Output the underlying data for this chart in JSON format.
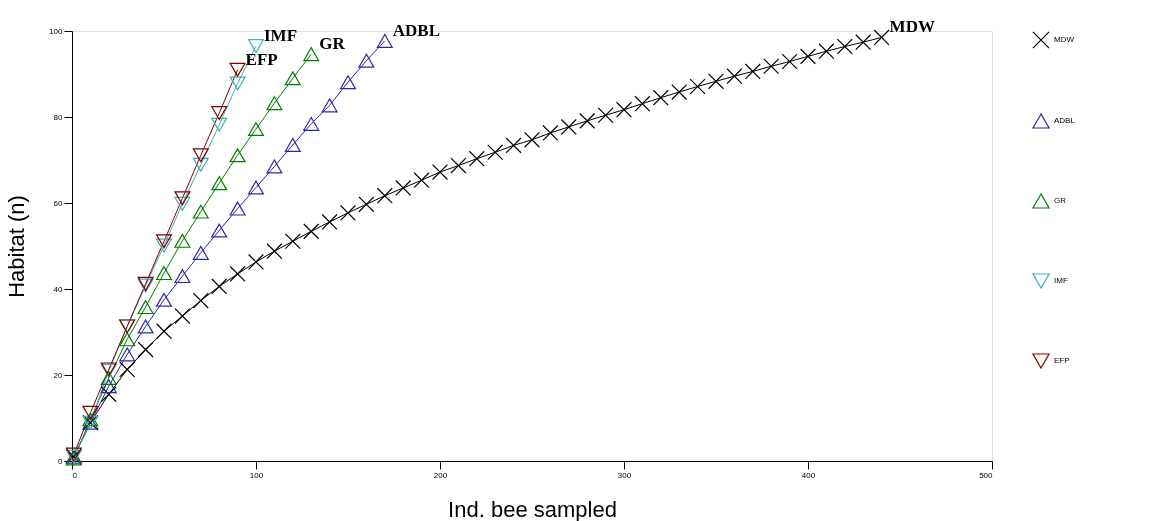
{
  "chart_data": {
    "type": "line",
    "xlabel": "Ind. bee sampled",
    "ylabel": "Habitat (n)",
    "xlim": [
      0,
      500
    ],
    "ylim": [
      0,
      100
    ],
    "xticks": [
      0,
      100,
      200,
      300,
      400,
      500
    ],
    "yticks": [
      0,
      20,
      40,
      60,
      80,
      100
    ],
    "legend": "right",
    "line_style": "solid",
    "series": [
      {
        "name": "MDW",
        "color": "#000000",
        "marker": "cross",
        "x": [
          1,
          10,
          20,
          30,
          40,
          50,
          60,
          70,
          80,
          90,
          100,
          110,
          120,
          130,
          140,
          150,
          160,
          170,
          180,
          190,
          200,
          210,
          220,
          230,
          240,
          250,
          260,
          270,
          280,
          290,
          300,
          310,
          320,
          330,
          340,
          350,
          360,
          370,
          380,
          390,
          400,
          410,
          420,
          430,
          440
        ],
        "values": [
          1,
          8.9,
          15.5,
          21.3,
          25.9,
          30.2,
          33.7,
          37.3,
          40.6,
          43.5,
          46.3,
          48.8,
          51.1,
          53.4,
          55.6,
          57.7,
          59.7,
          61.7,
          63.5,
          65.3,
          67.2,
          68.7,
          70.3,
          71.8,
          73.4,
          74.7,
          76.3,
          77.7,
          79.1,
          80.4,
          81.7,
          83.1,
          84.5,
          85.8,
          87.1,
          88.3,
          89.5,
          90.6,
          91.8,
          92.9,
          94.1,
          95.3,
          96.4,
          97.4,
          98.5
        ]
      },
      {
        "name": "ADBL",
        "color": "#2a2aa8",
        "marker": "triangle",
        "x": [
          1,
          10,
          20,
          30,
          40,
          50,
          60,
          70,
          80,
          90,
          100,
          110,
          120,
          130,
          140,
          150,
          160,
          170
        ],
        "values": [
          1,
          8.9,
          17.4,
          24.8,
          31.3,
          37.5,
          43,
          48.4,
          53.6,
          58.7,
          63.6,
          68.5,
          73.5,
          78.4,
          82.7,
          88.1,
          93.1,
          97.7
        ]
      },
      {
        "name": "GR",
        "color": "#008000",
        "marker": "triangle",
        "x": [
          1,
          10,
          20,
          30,
          40,
          50,
          60,
          70,
          80,
          90,
          100,
          110,
          120,
          130
        ],
        "values": [
          0.6,
          9.7,
          19.3,
          28.3,
          35.8,
          43.7,
          51.2,
          58,
          64.6,
          71.1,
          77.2,
          83.2,
          89,
          94.6
        ]
      },
      {
        "name": "IMF",
        "color": "#3fb0b0",
        "marker": "triangle-down",
        "x": [
          1,
          10,
          20,
          30,
          40,
          50,
          60,
          70,
          80,
          90,
          100
        ],
        "values": [
          1,
          8.9,
          21,
          31.3,
          40.8,
          50.1,
          59.8,
          68.9,
          78.2,
          87.8,
          96.5
        ]
      },
      {
        "name": "EFP",
        "color": "#800000",
        "marker": "triangle-down",
        "x": [
          1,
          10,
          20,
          30,
          40,
          50,
          60,
          70,
          80,
          90
        ],
        "values": [
          1.5,
          11.2,
          21.3,
          31.3,
          41.2,
          51.1,
          61.1,
          71.1,
          80.9,
          91
        ]
      }
    ]
  }
}
